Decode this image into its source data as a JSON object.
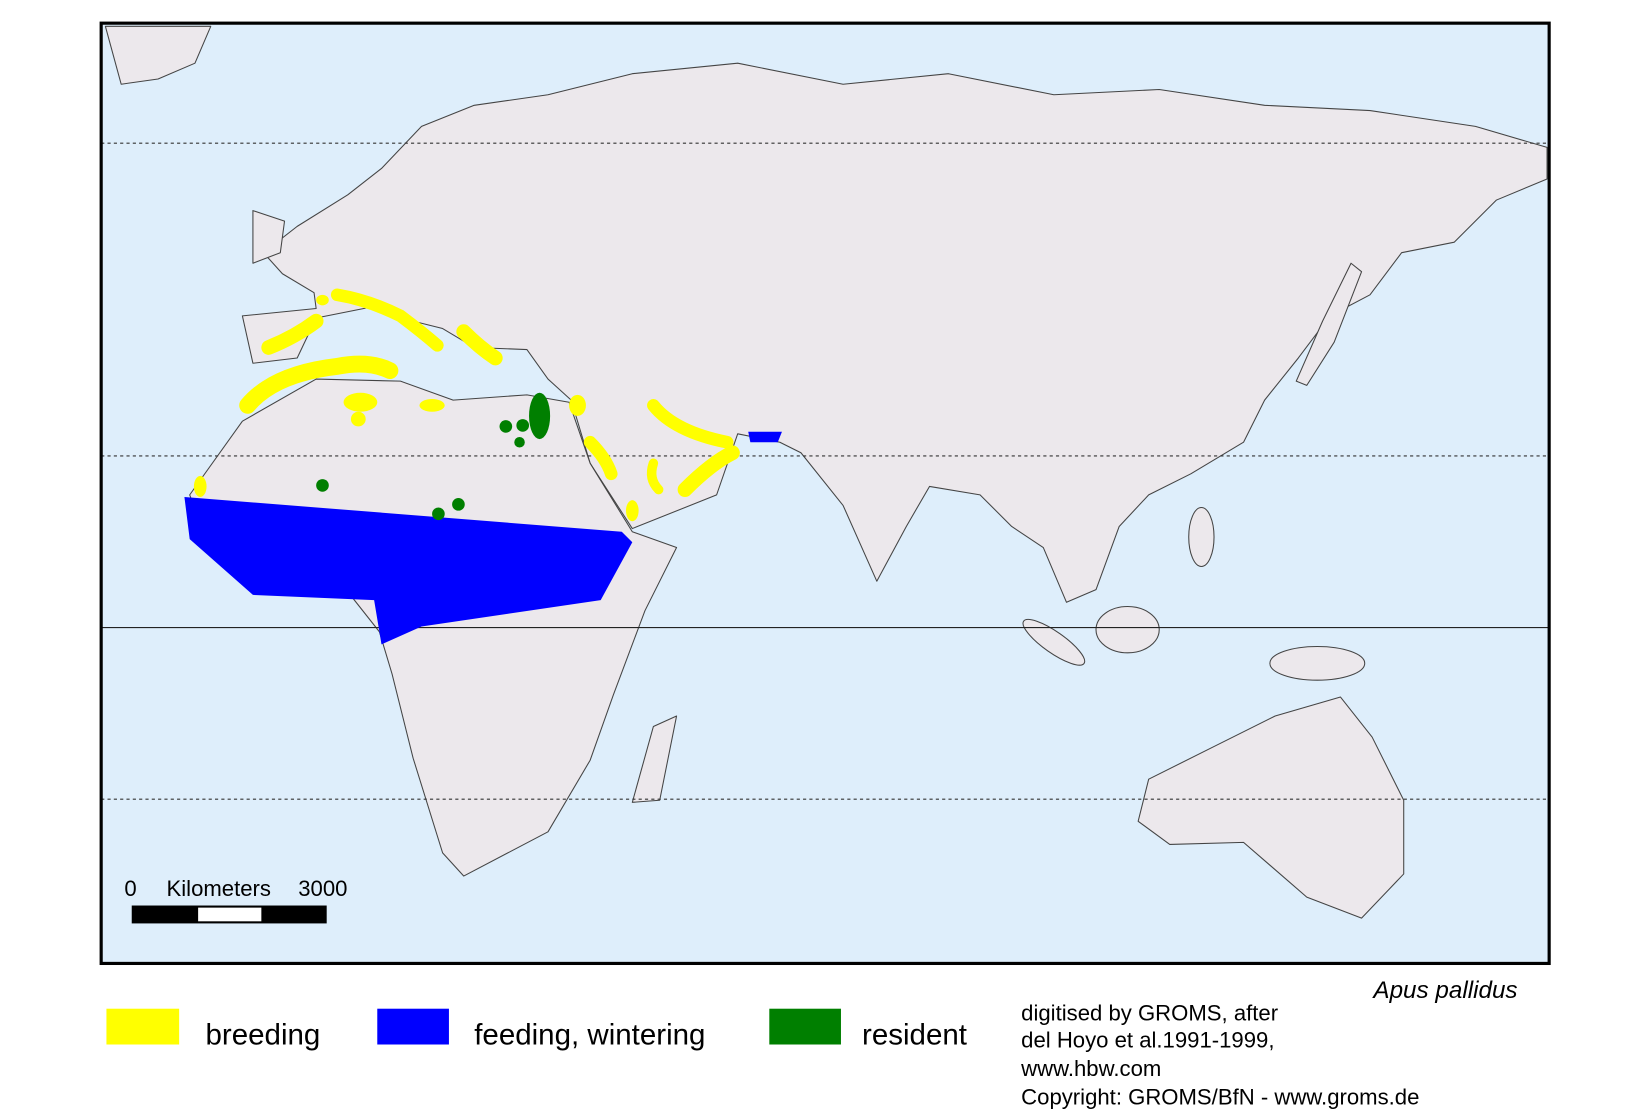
{
  "map": {
    "legend": [
      {
        "label": "breeding",
        "color": "#ffff00"
      },
      {
        "label": "feeding, wintering",
        "color": "#0000ff"
      },
      {
        "label": "resident",
        "color": "#007f00"
      }
    ],
    "species": "Apus pallidus",
    "credits": [
      "digitised by GROMS, after",
      "del Hoyo et al.1991-1999,",
      "www.hbw.com",
      "Copyright: GROMS/BfN - www.groms.de"
    ],
    "scale_bar": {
      "start": 0,
      "label": "Kilometers",
      "end": 3000
    }
  }
}
